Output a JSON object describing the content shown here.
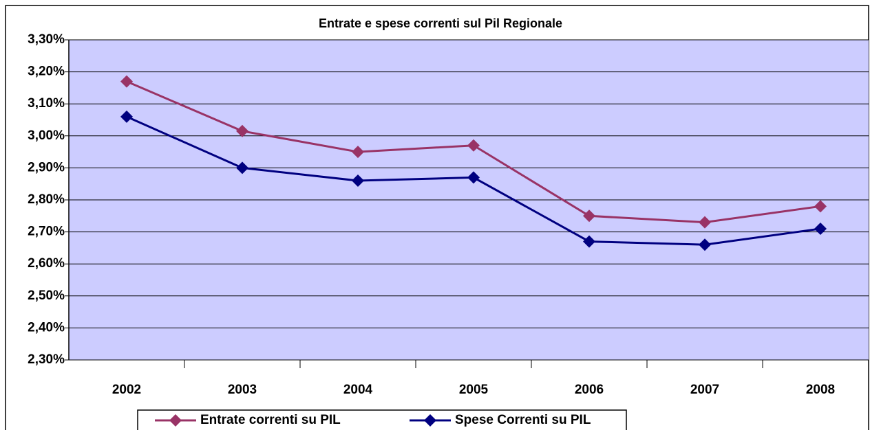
{
  "chart_data": {
    "type": "line",
    "title": "Entrate e spese correnti sul Pil Regionale",
    "categories": [
      "2002",
      "2003",
      "2004",
      "2005",
      "2006",
      "2007",
      "2008"
    ],
    "series": [
      {
        "name": "Entrate correnti su PIL",
        "color": "#993366",
        "values": [
          3.17,
          3.015,
          2.95,
          2.97,
          2.75,
          2.73,
          2.78
        ]
      },
      {
        "name": "Spese Correnti su PIL",
        "color": "#000080",
        "values": [
          3.06,
          2.9,
          2.86,
          2.87,
          2.67,
          2.66,
          2.71
        ]
      }
    ],
    "ylim": [
      2.3,
      3.3
    ],
    "yticks": [
      {
        "value": 2.3,
        "label": "2,30%"
      },
      {
        "value": 2.4,
        "label": "2,40%"
      },
      {
        "value": 2.5,
        "label": "2,50%"
      },
      {
        "value": 2.6,
        "label": "2,60%"
      },
      {
        "value": 2.7,
        "label": "2,70%"
      },
      {
        "value": 2.8,
        "label": "2,80%"
      },
      {
        "value": 2.9,
        "label": "2,90%"
      },
      {
        "value": 3.0,
        "label": "3,00%"
      },
      {
        "value": 3.1,
        "label": "3,10%"
      },
      {
        "value": 3.2,
        "label": "3,20%"
      },
      {
        "value": 3.3,
        "label": "3,30%"
      }
    ],
    "grid": true,
    "legend": "bottom"
  }
}
